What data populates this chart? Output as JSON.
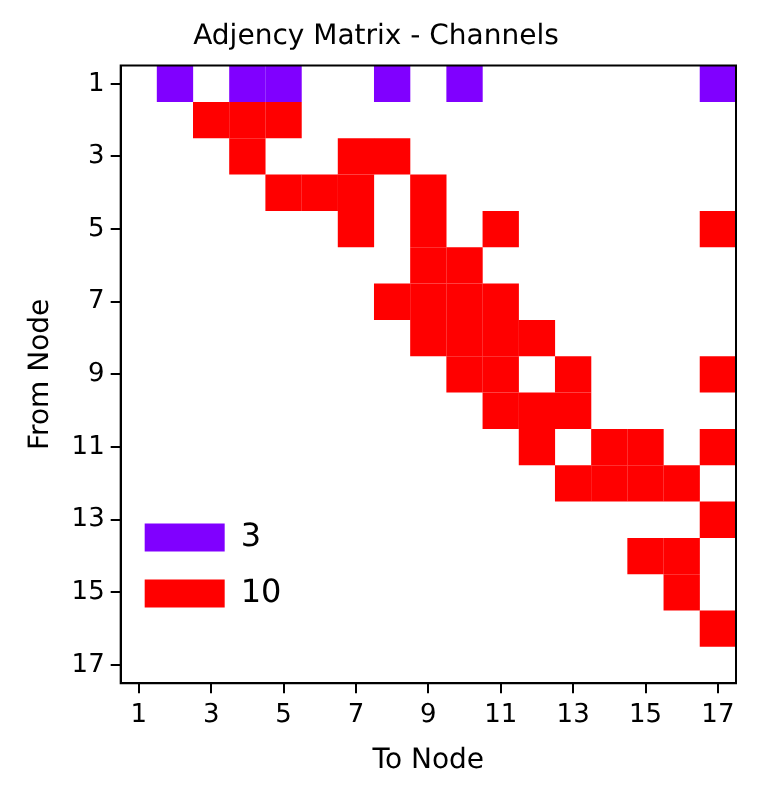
{
  "chart_data": {
    "type": "scatter",
    "title": "Adjency Matrix - Channels",
    "xlabel": "To Node",
    "ylabel": "From Node",
    "xlim": [
      0.5,
      17.5
    ],
    "xticks": [
      1,
      3,
      5,
      7,
      9,
      11,
      13,
      15,
      17
    ],
    "ylim": [
      17.5,
      0.5
    ],
    "yticks": [
      1,
      3,
      5,
      7,
      9,
      11,
      13,
      15,
      17
    ],
    "marker": "square",
    "legend": "bottom left",
    "grid": false,
    "series": [
      {
        "name": "3",
        "color": "#8000ff",
        "x": [
          2,
          4,
          5,
          8,
          10,
          17
        ],
        "values": [
          1,
          1,
          1,
          1,
          1,
          1
        ]
      },
      {
        "name": "10",
        "color": "#ff0000",
        "x": [
          3,
          4,
          5,
          4,
          7,
          8,
          5,
          6,
          7,
          9,
          7,
          9,
          11,
          17,
          9,
          10,
          8,
          9,
          10,
          11,
          9,
          10,
          11,
          12,
          10,
          11,
          13,
          17,
          11,
          12,
          13,
          12,
          14,
          15,
          17,
          13,
          14,
          15,
          16,
          17,
          15,
          16,
          16,
          17
        ],
        "values": [
          2,
          2,
          2,
          3,
          3,
          3,
          4,
          4,
          4,
          4,
          5,
          5,
          5,
          5,
          6,
          6,
          7,
          7,
          7,
          7,
          8,
          8,
          8,
          8,
          9,
          9,
          9,
          9,
          10,
          10,
          10,
          11,
          11,
          11,
          11,
          12,
          12,
          12,
          12,
          13,
          14,
          14,
          15,
          16
        ]
      }
    ]
  }
}
